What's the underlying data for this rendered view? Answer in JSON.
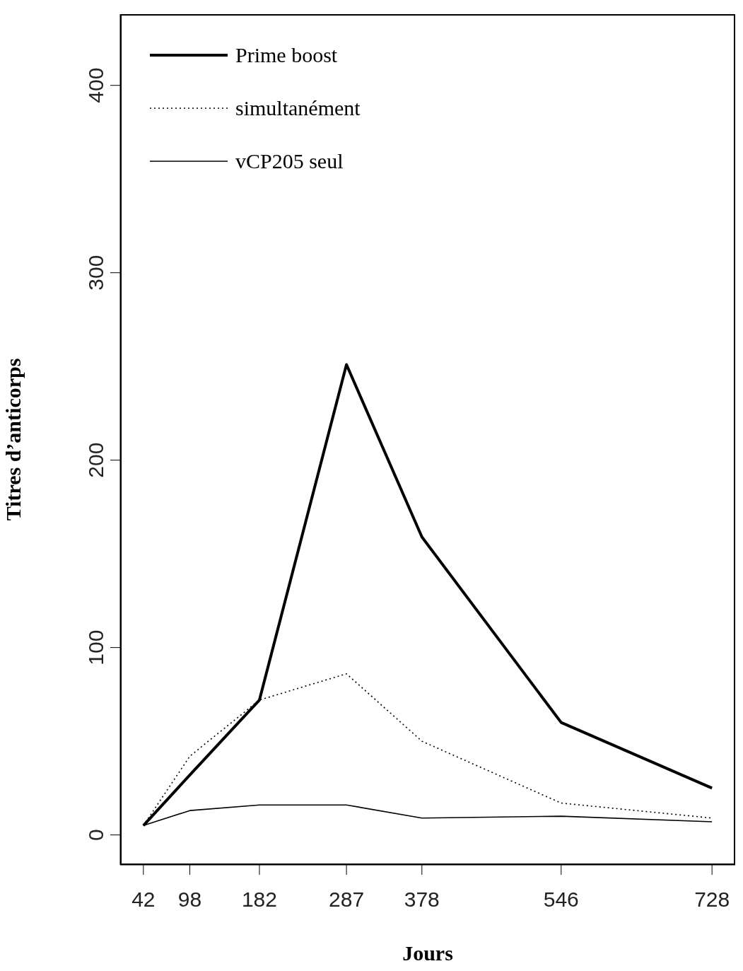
{
  "chart_data": {
    "type": "line",
    "xlabel": "Jours",
    "ylabel": "Titres d’anticorps",
    "x": [
      42,
      98,
      182,
      287,
      378,
      546,
      728
    ],
    "xlim": [
      14,
      756
    ],
    "xticks": [
      42,
      98,
      182,
      287,
      378,
      546,
      728
    ],
    "ylim": [
      -16,
      438
    ],
    "yticks": [
      0,
      100,
      200,
      300,
      400
    ],
    "legend": "top left",
    "marker": "none",
    "series": [
      {
        "name": "Prime boost",
        "color": "#000000",
        "line_style": "solid",
        "values": [
          5,
          32,
          72,
          251,
          159,
          60,
          25
        ]
      },
      {
        "name": "simultanément",
        "color": "#000000",
        "line_style": "dotted",
        "values": [
          5,
          42,
          72,
          86,
          50,
          17,
          9
        ]
      },
      {
        "name": "vCP205 seul",
        "color": "#000000",
        "line_style": "solid",
        "values": [
          5,
          13,
          16,
          16,
          9,
          10,
          7
        ]
      }
    ]
  }
}
